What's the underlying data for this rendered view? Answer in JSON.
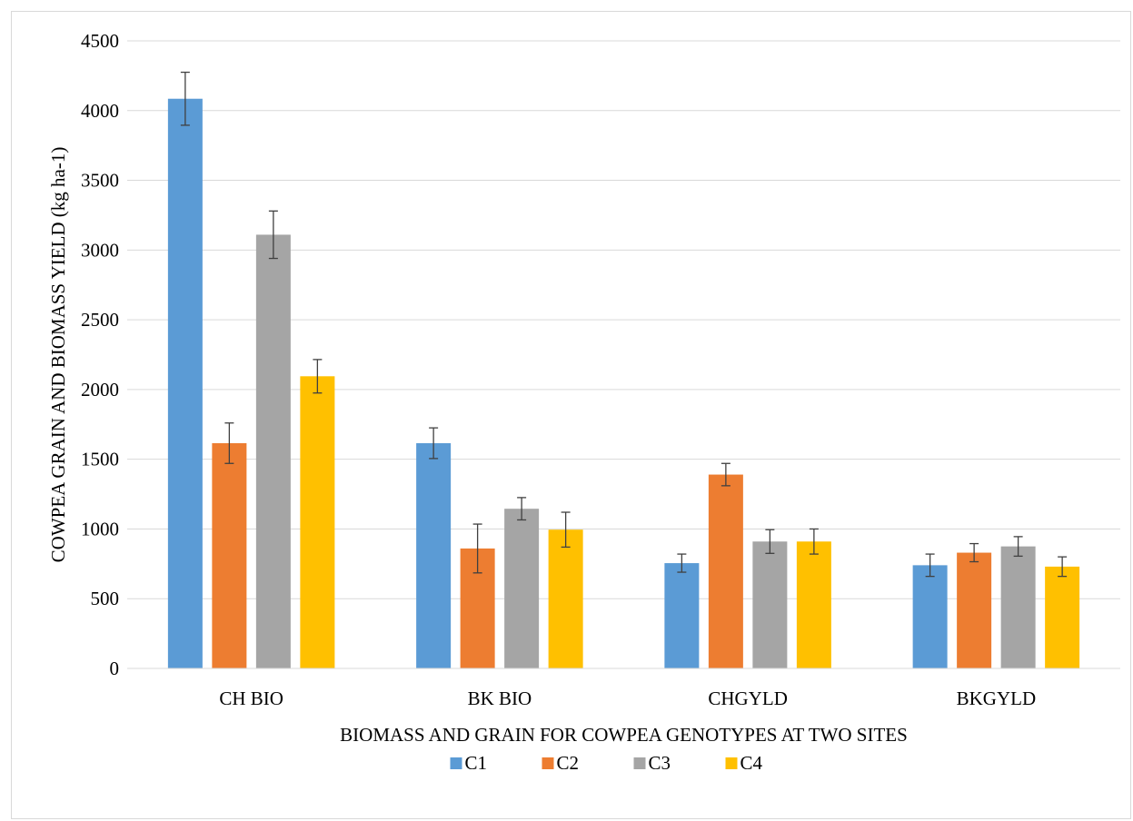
{
  "chart_data": {
    "type": "bar",
    "title": "",
    "xlabel": "BIOMASS AND GRAIN FOR COWPEA GENOTYPES  AT TWO SITES",
    "ylabel": "COWPEA GRAIN AND BIOMASS YIELD (kg ha-1)",
    "categories": [
      "CH BIO",
      "BK BIO",
      "CHGYLD",
      "BKGYLD"
    ],
    "ylim": [
      0,
      4500
    ],
    "yticks": [
      0,
      500,
      1000,
      1500,
      2000,
      2500,
      3000,
      3500,
      4000,
      4500
    ],
    "grid": true,
    "legend_position": "bottom",
    "series": [
      {
        "name": "C1",
        "color": "#5b9bd5",
        "values": [
          4085,
          1615,
          755,
          740
        ],
        "errors": [
          190,
          110,
          65,
          80
        ]
      },
      {
        "name": "C2",
        "color": "#ed7d31",
        "values": [
          1615,
          860,
          1390,
          830
        ],
        "errors": [
          145,
          175,
          80,
          65
        ]
      },
      {
        "name": "C3",
        "color": "#a5a5a5",
        "values": [
          3110,
          1145,
          910,
          875
        ],
        "errors": [
          170,
          80,
          85,
          70
        ]
      },
      {
        "name": "C4",
        "color": "#ffc000",
        "values": [
          2095,
          995,
          910,
          730
        ],
        "errors": [
          120,
          125,
          90,
          70
        ]
      }
    ]
  }
}
